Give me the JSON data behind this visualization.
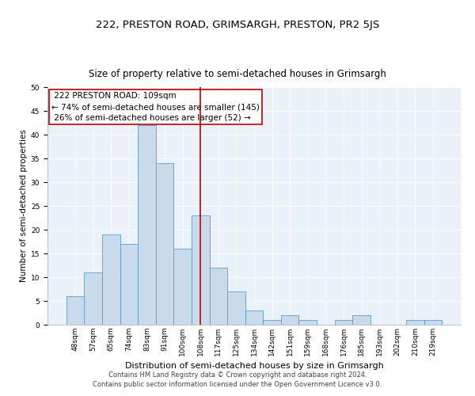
{
  "title": "222, PRESTON ROAD, GRIMSARGH, PRESTON, PR2 5JS",
  "subtitle": "Size of property relative to semi-detached houses in Grimsargh",
  "xlabel": "Distribution of semi-detached houses by size in Grimsargh",
  "ylabel": "Number of semi-detached properties",
  "categories": [
    "48sqm",
    "57sqm",
    "65sqm",
    "74sqm",
    "83sqm",
    "91sqm",
    "100sqm",
    "108sqm",
    "117sqm",
    "125sqm",
    "134sqm",
    "142sqm",
    "151sqm",
    "159sqm",
    "168sqm",
    "176sqm",
    "185sqm",
    "193sqm",
    "202sqm",
    "210sqm",
    "219sqm"
  ],
  "values": [
    6,
    11,
    19,
    17,
    42,
    34,
    16,
    23,
    12,
    7,
    3,
    1,
    2,
    1,
    0,
    1,
    2,
    0,
    0,
    1,
    1
  ],
  "bar_color": "#c9daea",
  "bar_edge_color": "#5b9bd5",
  "highlight_index": 7,
  "highlight_label": "222 PRESTON ROAD: 109sqm",
  "pct_smaller": 74,
  "count_smaller": 145,
  "pct_larger": 26,
  "count_larger": 52,
  "vline_color": "#c00000",
  "box_color": "#c00000",
  "ylim": [
    0,
    50
  ],
  "yticks": [
    0,
    5,
    10,
    15,
    20,
    25,
    30,
    35,
    40,
    45,
    50
  ],
  "footer_line1": "Contains HM Land Registry data © Crown copyright and database right 2024.",
  "footer_line2": "Contains public sector information licensed under the Open Government Licence v3.0.",
  "bg_color": "#eaf1f8",
  "title_fontsize": 9.5,
  "subtitle_fontsize": 8.5,
  "xlabel_fontsize": 8,
  "ylabel_fontsize": 7.5,
  "tick_fontsize": 6.5,
  "annotation_fontsize": 7.5,
  "footer_fontsize": 6
}
